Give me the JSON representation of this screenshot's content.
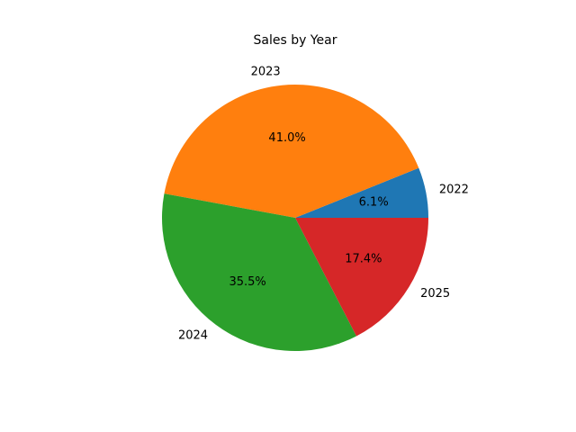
{
  "chart_data": {
    "type": "pie",
    "title": "Sales by Year",
    "categories": [
      "2022",
      "2023",
      "2024",
      "2025"
    ],
    "values": [
      6.1,
      41.0,
      35.5,
      17.4
    ],
    "value_labels": [
      "6.1%",
      "41.0%",
      "35.5%",
      "17.4%"
    ],
    "colors": [
      "#1f77b4",
      "#ff7f0e",
      "#2ca02c",
      "#d62728"
    ],
    "start_angle_deg": 0,
    "direction": "counterclockwise",
    "legend": "none"
  }
}
